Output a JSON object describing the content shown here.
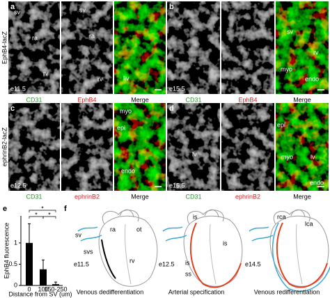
{
  "rows": [
    {
      "side_label": "EphB4-lacZ",
      "panels": [
        {
          "letter": "a",
          "stage": "e11.5",
          "captions": [
            "CD31",
            "EphB4",
            "Merge"
          ],
          "labels": [
            "sv",
            "ra",
            "rv",
            "sv",
            "ra",
            "rv",
            "liv"
          ]
        },
        {
          "letter": "b",
          "stage": "e15.5",
          "captions": [
            "CD31",
            "EphB4",
            "Merge"
          ],
          "labels": [
            "sv",
            "rv",
            "myo",
            "endo"
          ]
        }
      ]
    },
    {
      "side_label": "ephrinB2-lacZ",
      "panels": [
        {
          "letter": "c",
          "stage": "e12.5",
          "captions": [
            "CD31",
            "ephrinB2",
            "Merge"
          ],
          "labels": [
            "myo",
            "epi",
            "endo"
          ]
        },
        {
          "letter": "d",
          "stage": "e15.5",
          "captions": [
            "CD31",
            "ephrinB2",
            "Merge"
          ],
          "labels": [
            "lv",
            "epi",
            "myo",
            "lv",
            "endo"
          ]
        }
      ]
    }
  ],
  "chart_data": {
    "type": "bar",
    "letter": "e",
    "ylabel": "EphB4 fluorescence",
    "xlabel": "Distance from SV (um)",
    "categories": [
      "0",
      "100",
      "150-250"
    ],
    "values": [
      1.0,
      0.38,
      0.03
    ],
    "errors": [
      0.45,
      0.22,
      0.05
    ],
    "color": "#000000",
    "ylim": [
      0,
      1.8
    ],
    "yticks": [
      0,
      0.5,
      1
    ],
    "annotations": [
      "*",
      "*",
      "*"
    ]
  },
  "diagram": {
    "letter": "f",
    "stages": [
      {
        "stage": "e11.5",
        "caption": "Venous dedifferentiation",
        "labels": [
          "sv",
          "ra",
          "ot",
          "svs",
          "rv"
        ]
      },
      {
        "stage": "e12.5",
        "caption": "Arterial specification",
        "labels": [
          "is",
          "is",
          "is",
          "ss"
        ]
      },
      {
        "stage": "e14.5",
        "caption": "Venous redifferentiation",
        "labels": [
          "rca",
          "lca"
        ]
      }
    ]
  }
}
